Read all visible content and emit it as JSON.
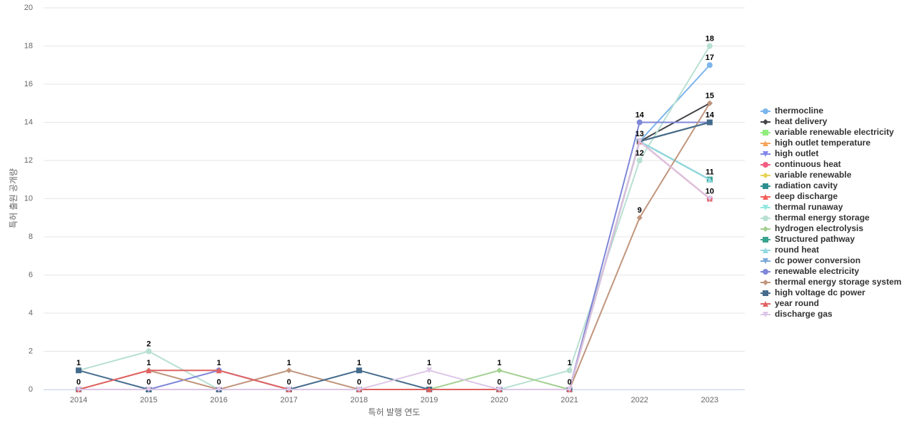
{
  "chart_data": {
    "type": "line",
    "x_label": "특허 발행 연도",
    "y_label": "특허 출원 공개량",
    "categories": [
      "2014",
      "2015",
      "2016",
      "2017",
      "2018",
      "2019",
      "2020",
      "2021",
      "2022",
      "2023"
    ],
    "ylim": [
      0,
      20
    ],
    "yticks": [
      0,
      2,
      4,
      6,
      8,
      10,
      12,
      14,
      16,
      18,
      20
    ],
    "grid": true,
    "legend": "right",
    "series": [
      {
        "name": "thermocline",
        "color": "#7cb5ec",
        "marker": "circle",
        "values": [
          0,
          0,
          0,
          0,
          0,
          0,
          0,
          0,
          13,
          17
        ]
      },
      {
        "name": "heat delivery",
        "color": "#434348",
        "marker": "diamond",
        "values": [
          0,
          0,
          0,
          0,
          0,
          0,
          0,
          0,
          13,
          15
        ]
      },
      {
        "name": "variable renewable electricity",
        "color": "#90ed7d",
        "marker": "square",
        "values": [
          0,
          0,
          0,
          0,
          0,
          0,
          0,
          0,
          13,
          14
        ]
      },
      {
        "name": "high outlet temperature",
        "color": "#f7a35c",
        "marker": "triangle",
        "values": [
          0,
          0,
          0,
          0,
          0,
          0,
          0,
          0,
          13,
          14
        ]
      },
      {
        "name": "high outlet",
        "color": "#8085e9",
        "marker": "triangle-down",
        "values": [
          0,
          0,
          0,
          0,
          0,
          0,
          0,
          0,
          13,
          10
        ]
      },
      {
        "name": "continuous heat",
        "color": "#f15c80",
        "marker": "circle",
        "values": [
          0,
          0,
          0,
          0,
          0,
          0,
          0,
          0,
          13,
          10
        ]
      },
      {
        "name": "variable renewable",
        "color": "#e4d354",
        "marker": "diamond",
        "values": [
          0,
          0,
          0,
          0,
          0,
          0,
          0,
          0,
          13,
          14
        ]
      },
      {
        "name": "radiation cavity",
        "color": "#2b908f",
        "marker": "square",
        "values": [
          0,
          0,
          0,
          0,
          0,
          0,
          0,
          0,
          13,
          11
        ]
      },
      {
        "name": "deep discharge",
        "color": "#f45b5b",
        "marker": "triangle",
        "values": [
          0,
          0,
          0,
          0,
          0,
          0,
          0,
          0,
          13,
          10
        ]
      },
      {
        "name": "thermal runaway",
        "color": "#91e8e1",
        "marker": "triangle-down",
        "values": [
          0,
          0,
          0,
          0,
          0,
          0,
          0,
          0,
          13,
          11
        ]
      },
      {
        "name": "thermal energy storage",
        "color": "#b8e0d2",
        "marker": "circle",
        "values": [
          1,
          2,
          0,
          0,
          0,
          0,
          0,
          1,
          12,
          18
        ]
      },
      {
        "name": "hydrogen electrolysis",
        "color": "#a3cf91",
        "marker": "diamond",
        "values": [
          0,
          0,
          0,
          0,
          0,
          0,
          1,
          0,
          13,
          11
        ]
      },
      {
        "name": "Structured pathway",
        "color": "#3aa38f",
        "marker": "square",
        "values": [
          0,
          0,
          0,
          0,
          0,
          0,
          0,
          0,
          13,
          11
        ]
      },
      {
        "name": "round heat",
        "color": "#93d9e3",
        "marker": "triangle",
        "values": [
          0,
          0,
          0,
          0,
          0,
          0,
          0,
          0,
          13,
          11
        ]
      },
      {
        "name": "dc power conversion",
        "color": "#7aa7d9",
        "marker": "triangle-down",
        "values": [
          0,
          0,
          0,
          0,
          0,
          0,
          0,
          0,
          13,
          14
        ]
      },
      {
        "name": "renewable electricity",
        "color": "#7f87d8",
        "marker": "circle",
        "values": [
          0,
          0,
          1,
          0,
          0,
          0,
          0,
          0,
          14,
          14
        ]
      },
      {
        "name": "thermal energy storage system",
        "color": "#c0957d",
        "marker": "diamond",
        "values": [
          0,
          1,
          0,
          1,
          0,
          0,
          0,
          0,
          9,
          15
        ]
      },
      {
        "name": "high voltage dc power",
        "color": "#456b8c",
        "marker": "square",
        "values": [
          1,
          0,
          0,
          0,
          1,
          0,
          0,
          0,
          13,
          14
        ]
      },
      {
        "name": "year round",
        "color": "#e06262",
        "marker": "triangle",
        "values": [
          0,
          1,
          1,
          0,
          0,
          0,
          0,
          0,
          13,
          10
        ]
      },
      {
        "name": "discharge gas",
        "color": "#dcc6e6",
        "marker": "triangle-down",
        "values": [
          0,
          0,
          0,
          0,
          0,
          1,
          0,
          0,
          13,
          10
        ]
      }
    ]
  }
}
